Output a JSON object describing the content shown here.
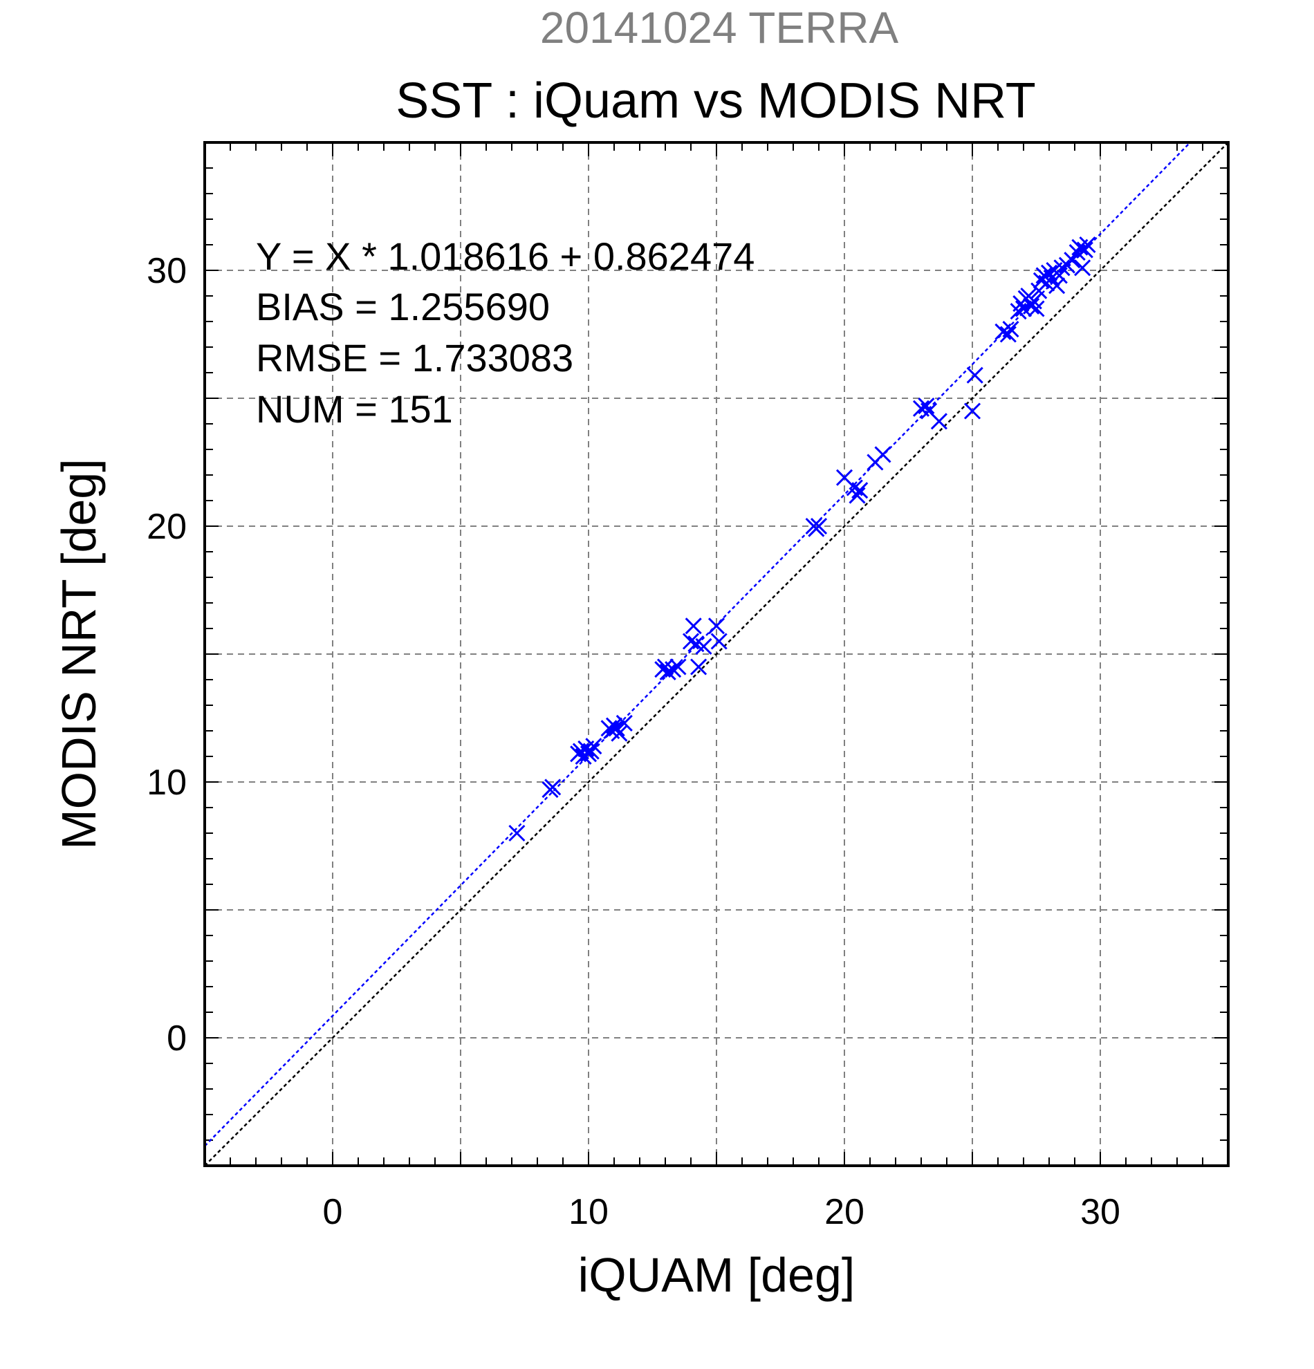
{
  "chart_data": {
    "type": "scatter",
    "title_date": "20141024 TERRA",
    "title": "SST : iQuam vs MODIS NRT",
    "xlabel": "iQUAM [deg]",
    "ylabel": "MODIS NRT [deg]",
    "xlim": [
      -5,
      35
    ],
    "ylim": [
      -5,
      35
    ],
    "xticks": [
      "0",
      "10",
      "20",
      "30"
    ],
    "yticks": [
      "0",
      "10",
      "20",
      "30"
    ],
    "tick_values": [
      0,
      10,
      20,
      30
    ],
    "grid_values": [
      0,
      5,
      10,
      15,
      20,
      25,
      30
    ],
    "grid": true,
    "stats": [
      "Y = X * 1.018616 + 0.862474",
      "BIAS = 1.255690",
      "RMSE = 1.733083",
      "NUM = 151"
    ],
    "fit": {
      "slope": 1.018616,
      "intercept": 0.862474
    },
    "colors": {
      "points": "#0000ff",
      "fit_line": "#0000ff",
      "identity_line": "#000000",
      "grid": "#808080"
    },
    "points": [
      [
        7.2,
        8.0
      ],
      [
        8.5,
        9.7
      ],
      [
        8.6,
        9.8
      ],
      [
        9.6,
        11.1
      ],
      [
        9.7,
        11.2
      ],
      [
        9.8,
        11.0
      ],
      [
        9.9,
        11.3
      ],
      [
        10.0,
        11.1
      ],
      [
        10.1,
        11.2
      ],
      [
        10.2,
        11.4
      ],
      [
        10.8,
        12.1
      ],
      [
        10.9,
        12.0
      ],
      [
        11.0,
        12.2
      ],
      [
        11.1,
        12.1
      ],
      [
        11.2,
        11.9
      ],
      [
        11.4,
        12.3
      ],
      [
        12.9,
        14.4
      ],
      [
        13.0,
        14.5
      ],
      [
        13.1,
        14.3
      ],
      [
        13.3,
        14.4
      ],
      [
        13.5,
        14.5
      ],
      [
        14.0,
        15.5
      ],
      [
        14.1,
        16.1
      ],
      [
        14.2,
        15.4
      ],
      [
        14.3,
        14.5
      ],
      [
        14.5,
        15.3
      ],
      [
        15.0,
        16.1
      ],
      [
        15.1,
        15.5
      ],
      [
        18.8,
        20.0
      ],
      [
        18.9,
        19.9
      ],
      [
        19.0,
        20.0
      ],
      [
        20.0,
        21.9
      ],
      [
        20.4,
        21.5
      ],
      [
        20.5,
        21.2
      ],
      [
        20.6,
        21.4
      ],
      [
        21.2,
        22.5
      ],
      [
        21.5,
        22.8
      ],
      [
        23.0,
        24.6
      ],
      [
        23.2,
        24.7
      ],
      [
        23.3,
        24.5
      ],
      [
        23.7,
        24.1
      ],
      [
        25.0,
        24.5
      ],
      [
        25.1,
        25.9
      ],
      [
        26.2,
        27.6
      ],
      [
        26.4,
        27.5
      ],
      [
        26.5,
        27.7
      ],
      [
        26.8,
        28.4
      ],
      [
        26.9,
        28.7
      ],
      [
        27.0,
        28.5
      ],
      [
        27.1,
        28.9
      ],
      [
        27.2,
        29.0
      ],
      [
        27.3,
        28.6
      ],
      [
        27.4,
        28.8
      ],
      [
        27.5,
        28.5
      ],
      [
        27.6,
        29.2
      ],
      [
        27.7,
        29.6
      ],
      [
        27.8,
        29.8
      ],
      [
        27.9,
        29.5
      ],
      [
        28.0,
        29.9
      ],
      [
        28.1,
        29.7
      ],
      [
        28.2,
        30.0
      ],
      [
        28.3,
        29.4
      ],
      [
        28.4,
        29.8
      ],
      [
        28.5,
        30.1
      ],
      [
        28.7,
        30.2
      ],
      [
        28.9,
        30.4
      ],
      [
        29.1,
        30.7
      ],
      [
        29.2,
        30.9
      ],
      [
        29.3,
        30.1
      ],
      [
        29.4,
        30.8
      ],
      [
        29.5,
        31.0
      ]
    ]
  }
}
